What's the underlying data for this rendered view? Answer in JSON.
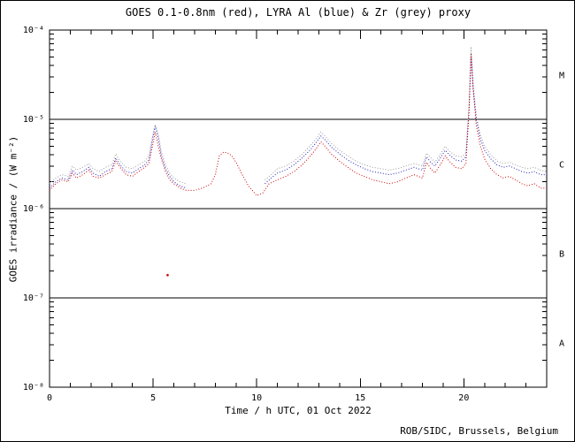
{
  "footer": {
    "credit": "ROB/SIDC, Brussels, Belgium"
  },
  "chart_data": {
    "type": "line",
    "title": "GOES 0.1-0.8nm (red), LYRA Al (blue) & Zr (grey) proxy",
    "xlabel": "Time / h UTC, 01 Oct 2022",
    "ylabel": "GOES irradiance / (W m⁻²)",
    "xscale": "linear",
    "yscale": "log",
    "xlim": [
      0,
      24
    ],
    "ylim": [
      1e-08,
      0.0001
    ],
    "x_ticks": {
      "values": [
        0,
        5,
        10,
        15,
        20
      ],
      "labels": [
        "0",
        "5",
        "10",
        "15",
        "20"
      ],
      "minor_step": 1
    },
    "y_ticks": {
      "values": [
        0.0001,
        1e-05,
        1e-06,
        1e-07,
        1e-08
      ],
      "labels": [
        "10⁻⁴",
        "10⁻⁵",
        "10⁻⁶",
        "10⁻⁷",
        "10⁻⁸"
      ]
    },
    "class_boundaries": [
      1e-05,
      1e-06,
      1e-07
    ],
    "flare_classes": [
      {
        "label": "M",
        "range": [
          1e-05,
          0.0001
        ]
      },
      {
        "label": "C",
        "range": [
          1e-06,
          1e-05
        ]
      },
      {
        "label": "B",
        "range": [
          1e-07,
          1e-06
        ]
      },
      {
        "label": "A",
        "range": [
          1e-08,
          1e-07
        ]
      }
    ],
    "colors": {
      "goes": "#cc0000",
      "lyra_al": "#2222bb",
      "lyra_zr": "#9a9a9a"
    },
    "legend_position": "in-title",
    "grid": false,
    "series": [
      {
        "id": "zr",
        "name": "LYRA Zr proxy",
        "color": "#9a9a9a",
        "style": "dotted",
        "points": [
          [
            0,
            1.9e-06
          ],
          [
            0.3,
            2.2e-06
          ],
          [
            0.6,
            2.4e-06
          ],
          [
            0.9,
            2.3e-06
          ],
          [
            1.1,
            3e-06
          ],
          [
            1.3,
            2.7e-06
          ],
          [
            1.6,
            2.9e-06
          ],
          [
            1.9,
            3.2e-06
          ],
          [
            2.1,
            2.8e-06
          ],
          [
            2.4,
            2.6e-06
          ],
          [
            2.7,
            2.9e-06
          ],
          [
            3.0,
            3.1e-06
          ],
          [
            3.2,
            4.1e-06
          ],
          [
            3.4,
            3.4e-06
          ],
          [
            3.7,
            2.9e-06
          ],
          [
            4.0,
            2.8e-06
          ],
          [
            4.3,
            3.1e-06
          ],
          [
            4.6,
            3.4e-06
          ],
          [
            4.8,
            3.9e-06
          ],
          [
            5.0,
            7e-06
          ],
          [
            5.1,
            8.8e-06
          ],
          [
            5.25,
            6.8e-06
          ],
          [
            5.4,
            4.3e-06
          ],
          [
            5.6,
            3.1e-06
          ],
          [
            5.8,
            2.5e-06
          ],
          [
            6.0,
            2.2e-06
          ],
          [
            6.3,
            2e-06
          ],
          [
            6.6,
            1.9e-06
          ],
          null,
          [
            10.4,
            2.1e-06
          ],
          [
            10.7,
            2.4e-06
          ],
          [
            11.0,
            2.8e-06
          ],
          [
            11.4,
            3e-06
          ],
          [
            11.8,
            3.4e-06
          ],
          [
            12.2,
            4.1e-06
          ],
          [
            12.6,
            5.1e-06
          ],
          [
            12.9,
            6.2e-06
          ],
          [
            13.1,
            7.2e-06
          ],
          [
            13.3,
            6.5e-06
          ],
          [
            13.6,
            5.4e-06
          ],
          [
            14.0,
            4.5e-06
          ],
          [
            14.4,
            3.9e-06
          ],
          [
            14.8,
            3.4e-06
          ],
          [
            15.2,
            3.1e-06
          ],
          [
            15.6,
            2.9e-06
          ],
          [
            16.0,
            2.8e-06
          ],
          [
            16.4,
            2.7e-06
          ],
          [
            16.8,
            2.8e-06
          ],
          [
            17.2,
            3e-06
          ],
          [
            17.6,
            3.2e-06
          ],
          [
            18.0,
            3e-06
          ],
          [
            18.2,
            4.2e-06
          ],
          [
            18.4,
            3.7e-06
          ],
          [
            18.6,
            3.3e-06
          ],
          [
            18.9,
            4.2e-06
          ],
          [
            19.1,
            5e-06
          ],
          [
            19.3,
            4.4e-06
          ],
          [
            19.6,
            3.9e-06
          ],
          [
            19.9,
            3.8e-06
          ],
          [
            20.1,
            4.2e-06
          ],
          [
            20.25,
            1.4e-05
          ],
          [
            20.35,
            6.5e-05
          ],
          [
            20.45,
            2.4e-05
          ],
          [
            20.6,
            1.1e-05
          ],
          [
            20.8,
            6.6e-06
          ],
          [
            21.0,
            5e-06
          ],
          [
            21.3,
            4e-06
          ],
          [
            21.6,
            3.4e-06
          ],
          [
            21.9,
            3.2e-06
          ],
          [
            22.2,
            3.3e-06
          ],
          [
            22.5,
            3.1e-06
          ],
          [
            22.8,
            2.9e-06
          ],
          [
            23.1,
            2.8e-06
          ],
          [
            23.4,
            2.9e-06
          ],
          [
            23.7,
            2.7e-06
          ],
          [
            24,
            2.6e-06
          ]
        ]
      },
      {
        "id": "al",
        "name": "LYRA Al proxy",
        "color": "#2222bb",
        "style": "dotted",
        "points": [
          [
            0,
            1.7e-06
          ],
          [
            0.3,
            2e-06
          ],
          [
            0.6,
            2.2e-06
          ],
          [
            0.9,
            2.1e-06
          ],
          [
            1.1,
            2.7e-06
          ],
          [
            1.3,
            2.4e-06
          ],
          [
            1.6,
            2.6e-06
          ],
          [
            1.9,
            2.9e-06
          ],
          [
            2.1,
            2.5e-06
          ],
          [
            2.4,
            2.3e-06
          ],
          [
            2.7,
            2.6e-06
          ],
          [
            3.0,
            2.8e-06
          ],
          [
            3.2,
            3.7e-06
          ],
          [
            3.4,
            3.1e-06
          ],
          [
            3.7,
            2.6e-06
          ],
          [
            4.0,
            2.5e-06
          ],
          [
            4.3,
            2.8e-06
          ],
          [
            4.6,
            3.1e-06
          ],
          [
            4.8,
            3.5e-06
          ],
          [
            5.0,
            6.5e-06
          ],
          [
            5.1,
            8.3e-06
          ],
          [
            5.25,
            6.2e-06
          ],
          [
            5.4,
            3.9e-06
          ],
          [
            5.6,
            2.8e-06
          ],
          [
            5.8,
            2.3e-06
          ],
          [
            6.0,
            2e-06
          ],
          [
            6.3,
            1.8e-06
          ],
          [
            6.6,
            1.7e-06
          ],
          null,
          [
            10.4,
            1.9e-06
          ],
          [
            10.7,
            2.2e-06
          ],
          [
            11.0,
            2.5e-06
          ],
          [
            11.4,
            2.7e-06
          ],
          [
            11.8,
            3.1e-06
          ],
          [
            12.2,
            3.7e-06
          ],
          [
            12.6,
            4.6e-06
          ],
          [
            12.9,
            5.6e-06
          ],
          [
            13.1,
            6.5e-06
          ],
          [
            13.3,
            5.9e-06
          ],
          [
            13.6,
            4.9e-06
          ],
          [
            14.0,
            4.1e-06
          ],
          [
            14.4,
            3.5e-06
          ],
          [
            14.8,
            3.1e-06
          ],
          [
            15.2,
            2.8e-06
          ],
          [
            15.6,
            2.6e-06
          ],
          [
            16.0,
            2.5e-06
          ],
          [
            16.4,
            2.4e-06
          ],
          [
            16.8,
            2.5e-06
          ],
          [
            17.2,
            2.7e-06
          ],
          [
            17.6,
            2.9e-06
          ],
          [
            18.0,
            2.7e-06
          ],
          [
            18.2,
            3.8e-06
          ],
          [
            18.4,
            3.3e-06
          ],
          [
            18.6,
            3e-06
          ],
          [
            18.9,
            3.8e-06
          ],
          [
            19.1,
            4.5e-06
          ],
          [
            19.3,
            4e-06
          ],
          [
            19.6,
            3.5e-06
          ],
          [
            19.9,
            3.4e-06
          ],
          [
            20.1,
            3.8e-06
          ],
          [
            20.25,
            1.3e-05
          ],
          [
            20.35,
            5e-05
          ],
          [
            20.45,
            2.2e-05
          ],
          [
            20.6,
            1e-05
          ],
          [
            20.8,
            6e-06
          ],
          [
            21.0,
            4.5e-06
          ],
          [
            21.3,
            3.6e-06
          ],
          [
            21.6,
            3.1e-06
          ],
          [
            21.9,
            2.9e-06
          ],
          [
            22.2,
            3e-06
          ],
          [
            22.5,
            2.8e-06
          ],
          [
            22.8,
            2.6e-06
          ],
          [
            23.1,
            2.5e-06
          ],
          [
            23.4,
            2.6e-06
          ],
          [
            23.7,
            2.4e-06
          ],
          [
            24,
            2.4e-06
          ]
        ]
      },
      {
        "id": "goes",
        "name": "GOES 0.1-0.8nm",
        "color": "#cc0000",
        "style": "dotted",
        "points": [
          [
            0,
            1.6e-06
          ],
          [
            0.3,
            1.9e-06
          ],
          [
            0.6,
            2.1e-06
          ],
          [
            0.9,
            2e-06
          ],
          [
            1.1,
            2.5e-06
          ],
          [
            1.3,
            2.2e-06
          ],
          [
            1.6,
            2.4e-06
          ],
          [
            1.9,
            2.7e-06
          ],
          [
            2.1,
            2.3e-06
          ],
          [
            2.4,
            2.2e-06
          ],
          [
            2.7,
            2.4e-06
          ],
          [
            3.0,
            2.6e-06
          ],
          [
            3.2,
            3.4e-06
          ],
          [
            3.4,
            2.9e-06
          ],
          [
            3.7,
            2.4e-06
          ],
          [
            4.0,
            2.3e-06
          ],
          [
            4.3,
            2.6e-06
          ],
          [
            4.6,
            2.9e-06
          ],
          [
            4.8,
            3.2e-06
          ],
          [
            5.0,
            5.5e-06
          ],
          [
            5.1,
            7.2e-06
          ],
          [
            5.25,
            5e-06
          ],
          [
            5.4,
            3.6e-06
          ],
          [
            5.6,
            2.6e-06
          ],
          [
            5.8,
            2.1e-06
          ],
          [
            6.0,
            1.9e-06
          ],
          [
            6.3,
            1.7e-06
          ],
          [
            6.6,
            1.6e-06
          ],
          [
            7.0,
            1.6e-06
          ],
          [
            7.4,
            1.7e-06
          ],
          [
            7.8,
            1.9e-06
          ],
          [
            8.0,
            2.4e-06
          ],
          [
            8.2,
            3.9e-06
          ],
          [
            8.4,
            4.3e-06
          ],
          [
            8.6,
            4.2e-06
          ],
          [
            8.8,
            3.9e-06
          ],
          [
            9.0,
            3.3e-06
          ],
          [
            9.3,
            2.4e-06
          ],
          [
            9.6,
            1.8e-06
          ],
          [
            10.0,
            1.4e-06
          ],
          [
            10.3,
            1.5e-06
          ],
          [
            10.6,
            1.9e-06
          ],
          [
            11.0,
            2.1e-06
          ],
          [
            11.4,
            2.3e-06
          ],
          [
            11.8,
            2.6e-06
          ],
          [
            12.2,
            3.1e-06
          ],
          [
            12.6,
            3.9e-06
          ],
          [
            12.9,
            4.8e-06
          ],
          [
            13.1,
            5.6e-06
          ],
          [
            13.3,
            5e-06
          ],
          [
            13.6,
            4.1e-06
          ],
          [
            14.0,
            3.4e-06
          ],
          [
            14.4,
            2.9e-06
          ],
          [
            14.8,
            2.5e-06
          ],
          [
            15.2,
            2.3e-06
          ],
          [
            15.6,
            2.1e-06
          ],
          [
            16.0,
            2e-06
          ],
          [
            16.4,
            1.9e-06
          ],
          [
            16.8,
            2e-06
          ],
          [
            17.2,
            2.2e-06
          ],
          [
            17.6,
            2.4e-06
          ],
          [
            18.0,
            2.2e-06
          ],
          [
            18.2,
            3.3e-06
          ],
          [
            18.4,
            2.8e-06
          ],
          [
            18.6,
            2.5e-06
          ],
          [
            18.9,
            3.2e-06
          ],
          [
            19.1,
            3.9e-06
          ],
          [
            19.3,
            3.4e-06
          ],
          [
            19.6,
            2.9e-06
          ],
          [
            19.9,
            2.8e-06
          ],
          [
            20.1,
            3.2e-06
          ],
          [
            20.25,
            1.2e-05
          ],
          [
            20.35,
            5.5e-05
          ],
          [
            20.45,
            2.2e-05
          ],
          [
            20.6,
            8.5e-06
          ],
          [
            20.8,
            5e-06
          ],
          [
            21.0,
            3.6e-06
          ],
          [
            21.3,
            2.8e-06
          ],
          [
            21.6,
            2.4e-06
          ],
          [
            21.9,
            2.2e-06
          ],
          [
            22.2,
            2.3e-06
          ],
          [
            22.5,
            2.1e-06
          ],
          [
            22.8,
            1.9e-06
          ],
          [
            23.1,
            1.8e-06
          ],
          [
            23.4,
            1.9e-06
          ],
          [
            23.7,
            1.7e-06
          ],
          [
            24,
            1.7e-06
          ]
        ]
      }
    ],
    "outliers": [
      {
        "series": "goes",
        "x": 5.7,
        "y": 1.8e-07,
        "color": "#cc0000"
      }
    ]
  }
}
